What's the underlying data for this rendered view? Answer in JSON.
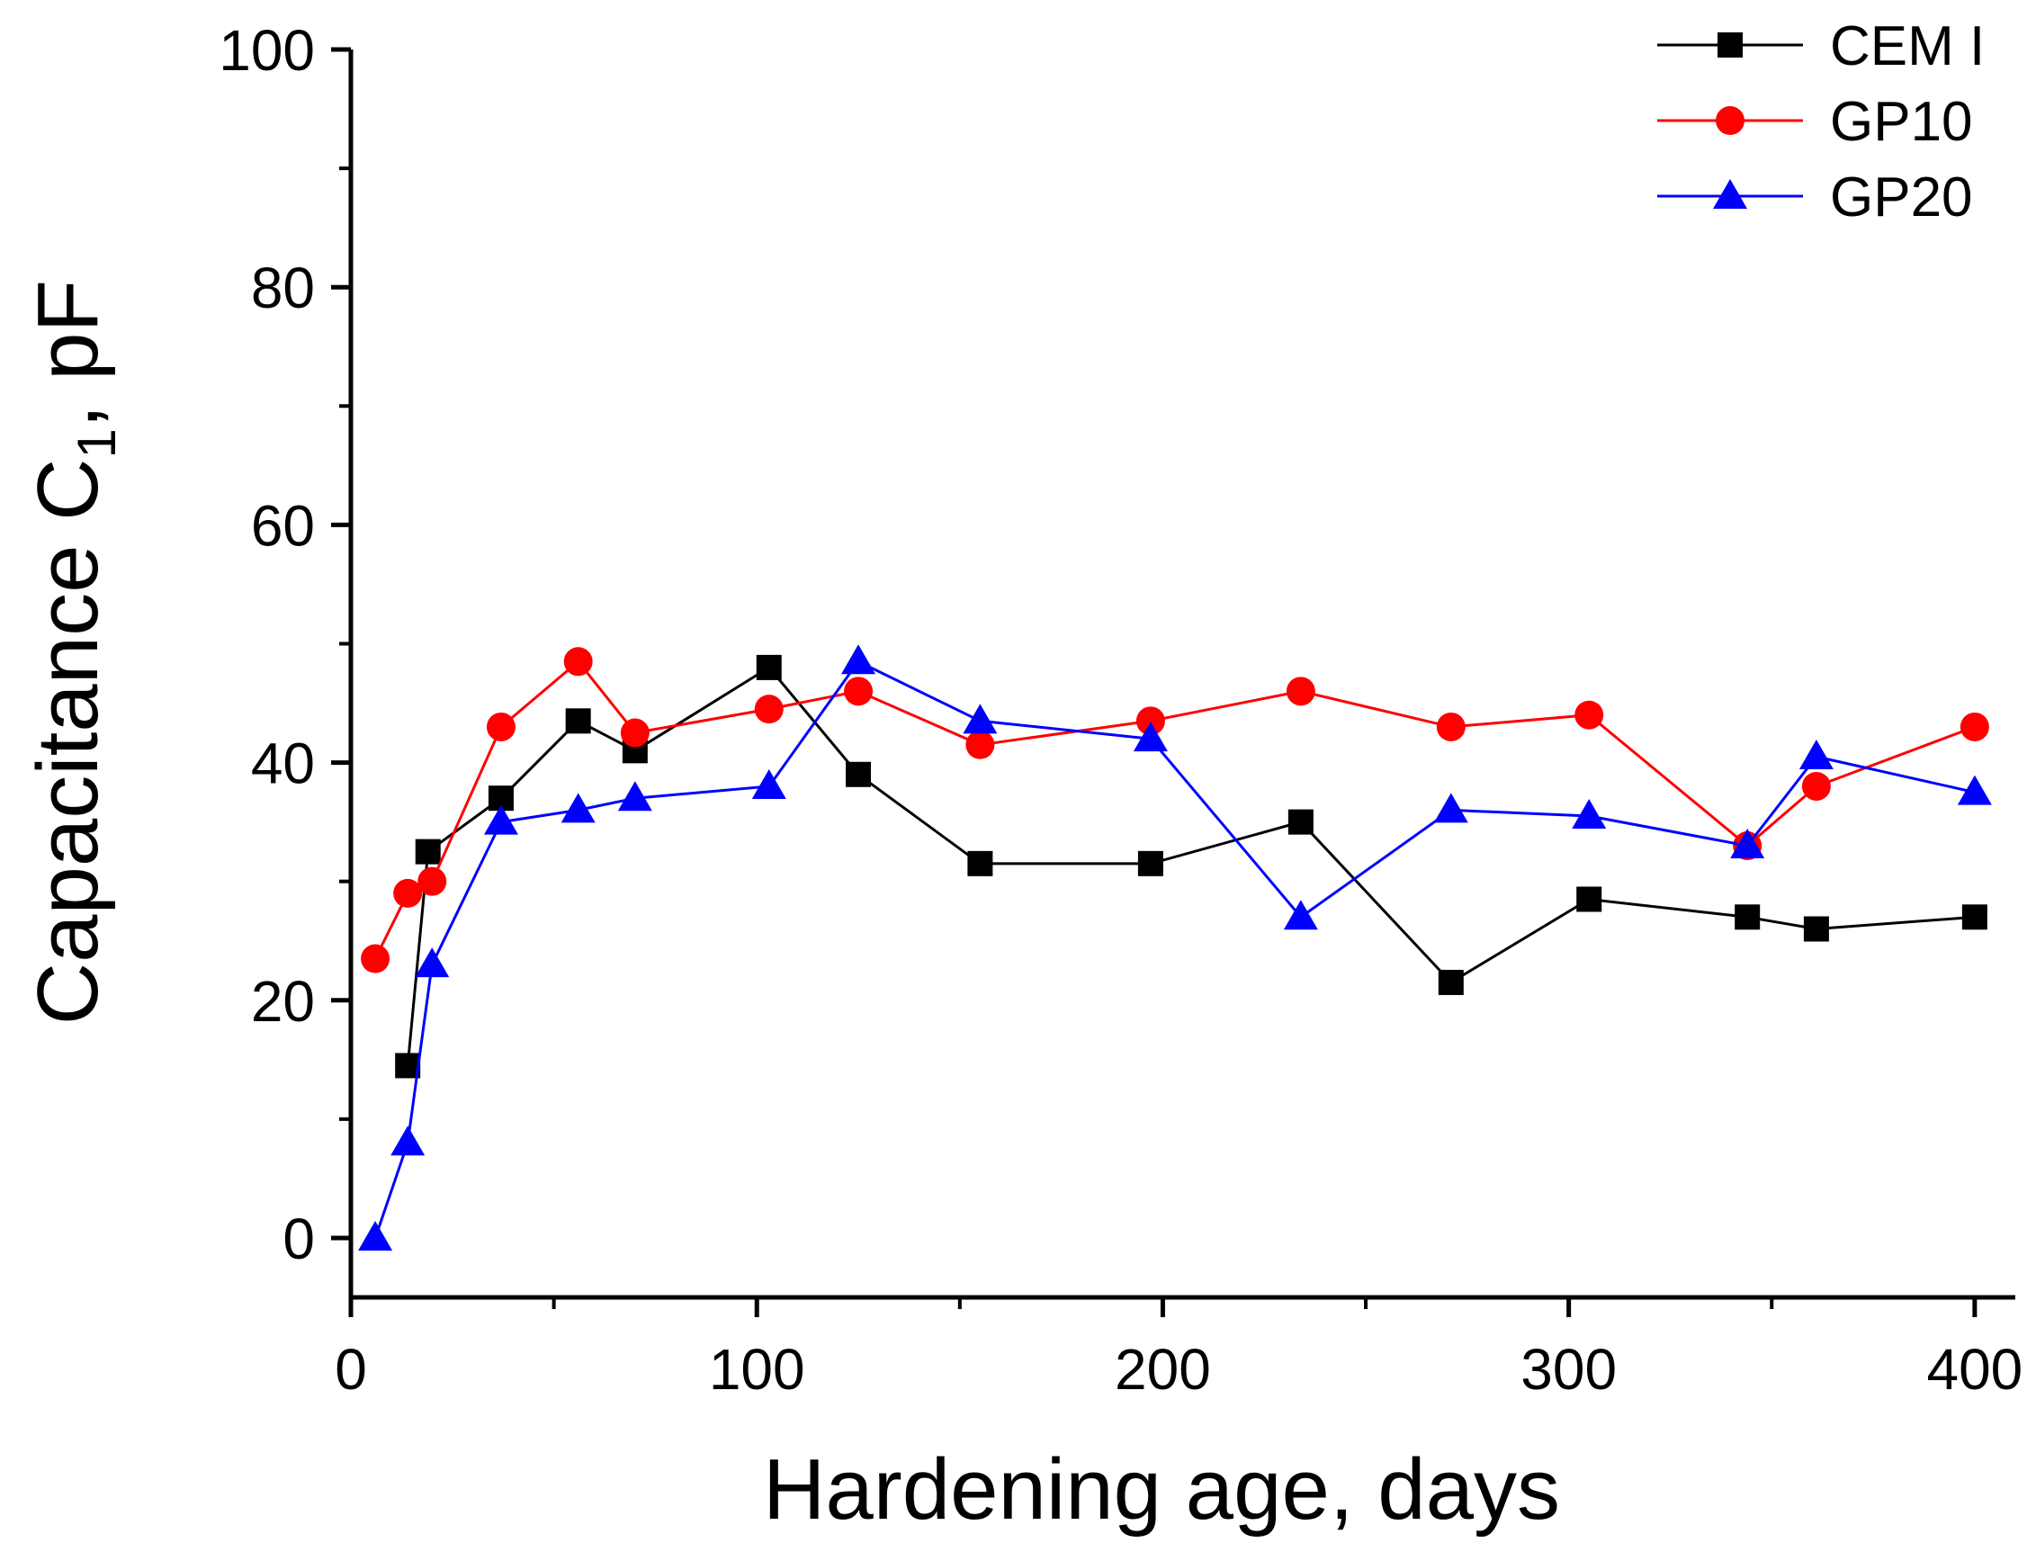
{
  "chart_data": {
    "type": "line",
    "title": "",
    "xlabel": "Hardening age, days",
    "ylabel_main": "Capacitance C",
    "ylabel_subscript": "1",
    "ylabel_suffix": ", pF",
    "xlim": [
      0,
      410
    ],
    "ylim": [
      -5,
      100
    ],
    "x_ticks": [
      0,
      100,
      200,
      300,
      400
    ],
    "x_tick_labels": [
      "0",
      "100",
      "200",
      "300",
      "400"
    ],
    "y_ticks": [
      0,
      20,
      40,
      60,
      80,
      100
    ],
    "y_tick_labels": [
      "0",
      "20",
      "40",
      "60",
      "80",
      "100"
    ],
    "legend_position": "top-right",
    "grid": false,
    "series": [
      {
        "name": "CEM I",
        "color": "#000000",
        "marker": "square",
        "x": [
          14,
          19,
          37,
          56,
          70,
          103,
          125,
          155,
          197,
          234,
          271,
          305,
          344,
          361,
          400
        ],
        "y": [
          14.5,
          32.5,
          37,
          43.5,
          41,
          48,
          39,
          31.5,
          31.5,
          35,
          21.5,
          28.5,
          27,
          26,
          27
        ]
      },
      {
        "name": "GP10",
        "color": "#ff0000",
        "marker": "circle",
        "x": [
          6,
          14,
          20,
          37,
          56,
          70,
          103,
          125,
          155,
          197,
          234,
          271,
          305,
          344,
          361,
          400
        ],
        "y": [
          23.5,
          29,
          30,
          43,
          48.5,
          42.5,
          44.5,
          46,
          41.5,
          43.5,
          46,
          43,
          44,
          33,
          38,
          43
        ]
      },
      {
        "name": "GP20",
        "color": "#0000ff",
        "marker": "triangle",
        "x": [
          6,
          14,
          20,
          37,
          56,
          70,
          103,
          125,
          155,
          197,
          234,
          271,
          305,
          344,
          361,
          400
        ],
        "y": [
          0,
          8,
          23,
          35,
          36,
          37,
          38,
          48.5,
          43.5,
          42,
          27,
          36,
          35.5,
          33,
          40.5,
          37.5
        ]
      }
    ]
  }
}
